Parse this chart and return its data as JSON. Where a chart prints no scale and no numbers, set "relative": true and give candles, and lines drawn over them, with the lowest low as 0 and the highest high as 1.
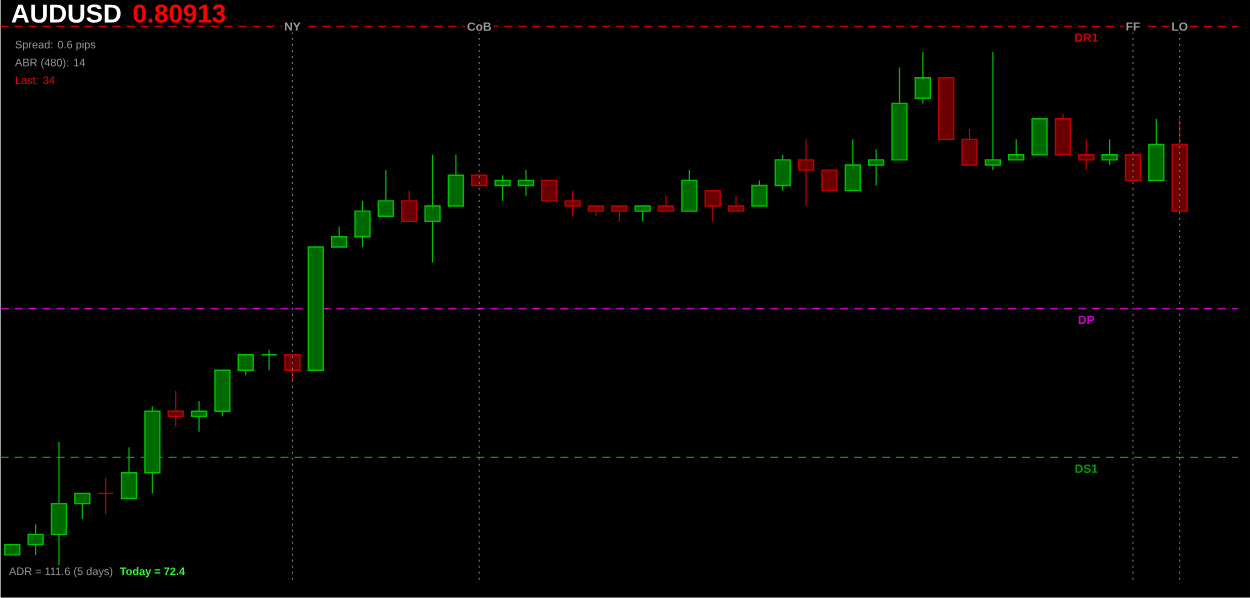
{
  "chart_data": {
    "type": "candlestick",
    "title": "AUDUSD",
    "subtitle": "0.80913",
    "relative": true,
    "categories": [
      null,
      null,
      null,
      null,
      null,
      null,
      null,
      null,
      null,
      null,
      null,
      null,
      null,
      null,
      null,
      null,
      null,
      null,
      null,
      null,
      null,
      null,
      null,
      null,
      null,
      null,
      null,
      null,
      null,
      null,
      null,
      null,
      null,
      null,
      null,
      null,
      null,
      null,
      null,
      null,
      null,
      null,
      null,
      null,
      null,
      null,
      null,
      null,
      null,
      null,
      null
    ],
    "ohlc": [
      [
        0.02,
        0.04,
        0.02,
        0.04
      ],
      [
        0.04,
        0.08,
        0.02,
        0.06
      ],
      [
        0.06,
        0.24,
        0,
        0.12
      ],
      [
        0.12,
        0.14,
        0.09,
        0.14
      ],
      [
        0.14,
        0.17,
        0.1,
        0.14
      ],
      [
        0.13,
        0.23,
        0.13,
        0.18
      ],
      [
        0.18,
        0.31,
        0.14,
        0.3
      ],
      [
        0.3,
        0.34,
        0.27,
        0.29
      ],
      [
        0.29,
        0.32,
        0.26,
        0.3
      ],
      [
        0.3,
        0.38,
        0.29,
        0.38
      ],
      [
        0.38,
        0.41,
        0.37,
        0.41
      ],
      [
        0.41,
        0.42,
        0.38,
        0.41
      ],
      [
        0.41,
        0.41,
        0.36,
        0.38
      ],
      [
        0.38,
        0.62,
        0.38,
        0.62
      ],
      [
        0.62,
        0.66,
        0.62,
        0.64
      ],
      [
        0.64,
        0.71,
        0.62,
        0.69
      ],
      [
        0.68,
        0.77,
        0.68,
        0.71
      ],
      [
        0.71,
        0.73,
        0.67,
        0.67
      ],
      [
        0.67,
        0.8,
        0.59,
        0.7
      ],
      [
        0.7,
        0.8,
        0.7,
        0.76
      ],
      [
        0.76,
        0.76,
        0.74,
        0.74
      ],
      [
        0.74,
        0.76,
        0.71,
        0.75
      ],
      [
        0.74,
        0.77,
        0.72,
        0.75
      ],
      [
        0.75,
        0.75,
        0.71,
        0.71
      ],
      [
        0.71,
        0.73,
        0.68,
        0.7
      ],
      [
        0.7,
        0.7,
        0.68,
        0.69
      ],
      [
        0.7,
        0.7,
        0.67,
        0.69
      ],
      [
        0.69,
        0.7,
        0.67,
        0.7
      ],
      [
        0.7,
        0.72,
        0.69,
        0.69
      ],
      [
        0.69,
        0.77,
        0.69,
        0.75
      ],
      [
        0.73,
        0.73,
        0.67,
        0.7
      ],
      [
        0.7,
        0.72,
        0.69,
        0.69
      ],
      [
        0.7,
        0.75,
        0.7,
        0.74
      ],
      [
        0.74,
        0.8,
        0.73,
        0.79
      ],
      [
        0.79,
        0.83,
        0.7,
        0.77
      ],
      [
        0.77,
        0.77,
        0.73,
        0.73
      ],
      [
        0.73,
        0.83,
        0.73,
        0.78
      ],
      [
        0.78,
        0.81,
        0.74,
        0.79
      ],
      [
        0.79,
        0.97,
        0.79,
        0.9
      ],
      [
        0.91,
        1,
        0.9,
        0.95
      ],
      [
        0.95,
        0.95,
        0.83,
        0.83
      ],
      [
        0.83,
        0.85,
        0.78,
        0.78
      ],
      [
        0.78,
        1,
        0.77,
        0.79
      ],
      [
        0.79,
        0.83,
        0.79,
        0.8
      ],
      [
        0.8,
        0.87,
        0.8,
        0.87
      ],
      [
        0.87,
        0.88,
        0.8,
        0.8
      ],
      [
        0.8,
        0.83,
        0.77,
        0.79
      ],
      [
        0.79,
        0.83,
        0.78,
        0.8
      ],
      [
        0.8,
        0.8,
        0.75,
        0.75
      ],
      [
        0.75,
        0.87,
        0.75,
        0.82
      ],
      [
        0.82,
        0.87,
        0.69,
        0.69
      ]
    ],
    "colors": [
      "#00c000",
      "#00c000",
      "#00c000",
      "#00c000",
      "#c00000",
      "#00c000",
      "#00c000",
      "#c00000",
      "#00c000",
      "#00c000",
      "#00c000",
      "#00c000",
      "#c00000",
      "#00c000",
      "#00c000",
      "#00c000",
      "#00c000",
      "#c00000",
      "#00c000",
      "#00c000",
      "#c00000",
      "#00c000",
      "#00c000",
      "#c00000",
      "#c00000",
      "#c00000",
      "#c00000",
      "#00c000",
      "#c00000",
      "#00c000",
      "#c00000",
      "#c00000",
      "#00c000",
      "#00c000",
      "#c00000",
      "#c00000",
      "#00c000",
      "#00c000",
      "#00c000",
      "#00c000",
      "#c00000",
      "#c00000",
      "#00c000",
      "#00c000",
      "#00c000",
      "#c00000",
      "#c00000",
      "#00c000",
      "#c00000",
      "#00c000",
      "#c00000"
    ],
    "ref_lines": [
      {
        "axis": "y",
        "value": 1.05,
        "label": "DR1",
        "color": "#d00000",
        "line_style": "dashed"
      },
      {
        "axis": "y",
        "value": 0.5,
        "label": "DP",
        "color": "#cc00cc",
        "line_style": "dashed"
      },
      {
        "axis": "y",
        "value": 0.21,
        "label": "DS1",
        "color": "#00a000",
        "line_style": "dashed"
      }
    ],
    "grid": "x",
    "annotations": [
      "Spread: 0.6 pips",
      "ABR (480): 14",
      "Last: 34",
      "ADR = 111.6 (5 days)",
      "Today = 72.4",
      "NY",
      "CoB",
      "FF",
      "LO"
    ]
  }
}
